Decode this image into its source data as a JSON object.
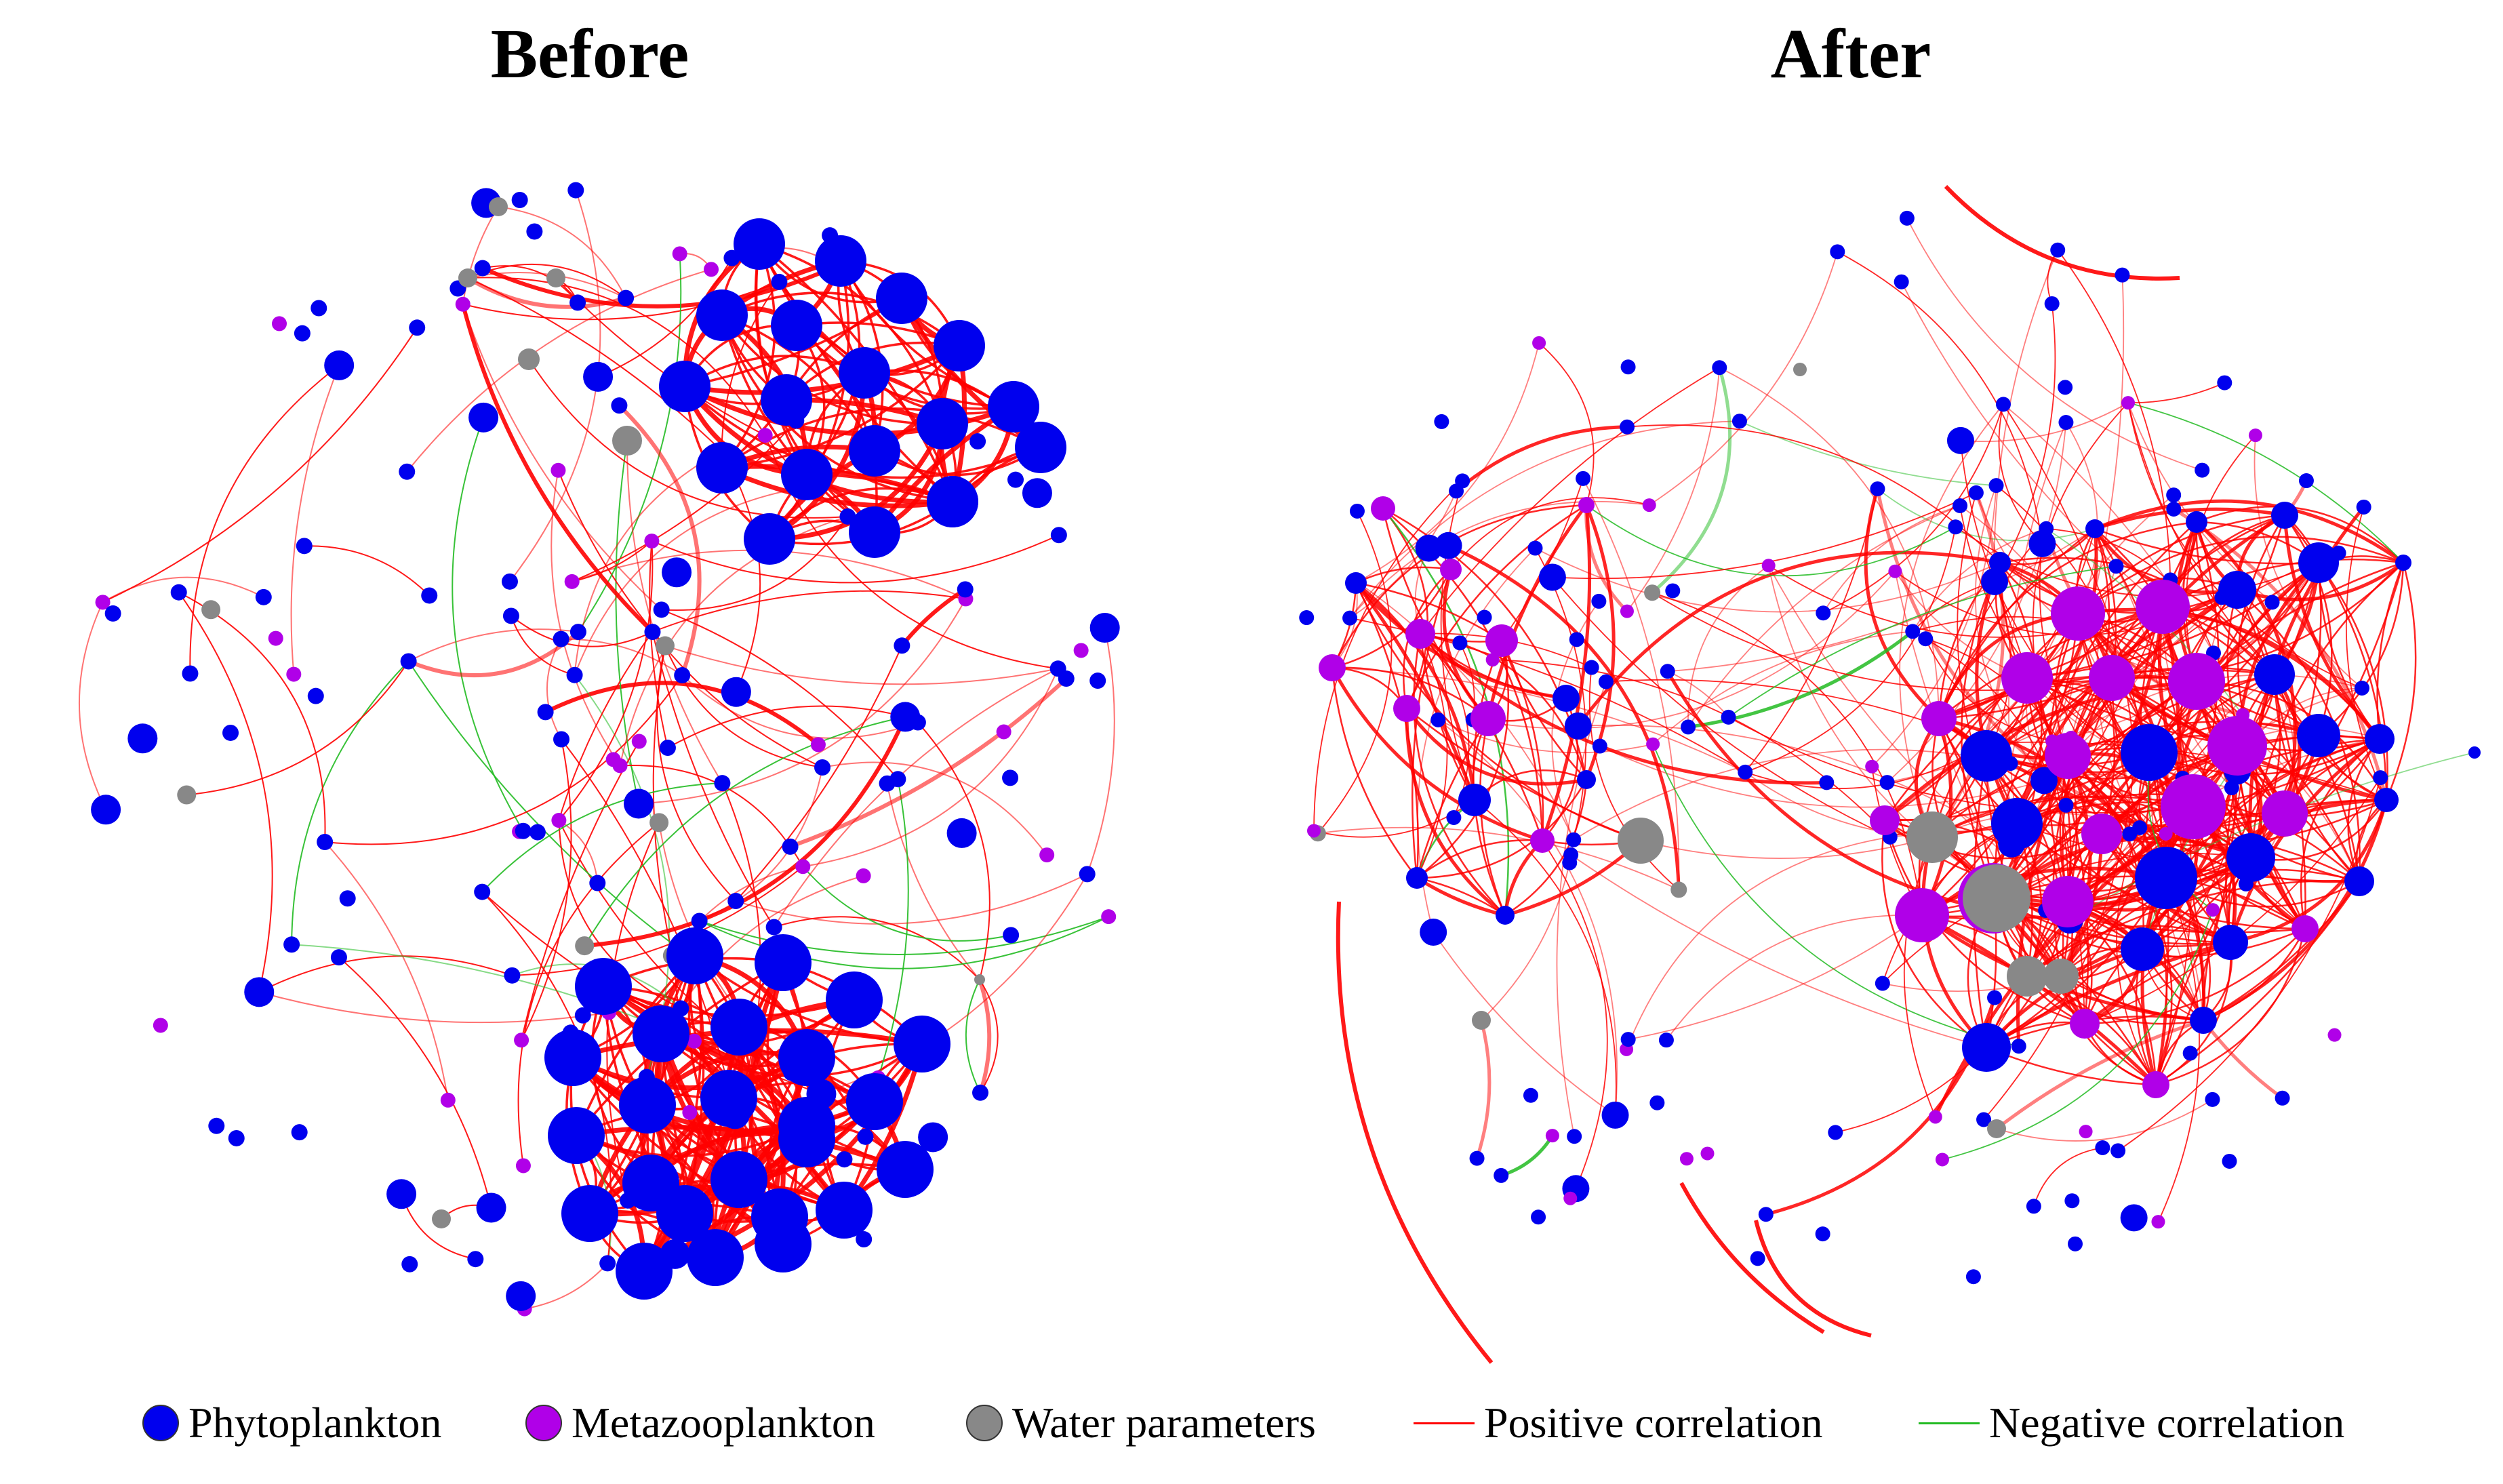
{
  "titles": {
    "before": "Before",
    "after": "After"
  },
  "colors": {
    "phytoplankton": "#0000ee",
    "metazooplankton": "#b000e8",
    "water_parameters": "#888888",
    "positive": "#ff0000",
    "negative": "#22bb22"
  },
  "legend": {
    "phytoplankton": "Phytoplankton",
    "metazooplankton": "Metazooplankton",
    "water_parameters": "Water parameters",
    "positive": "Positive correlation",
    "negative": "Negative correlation"
  }
}
